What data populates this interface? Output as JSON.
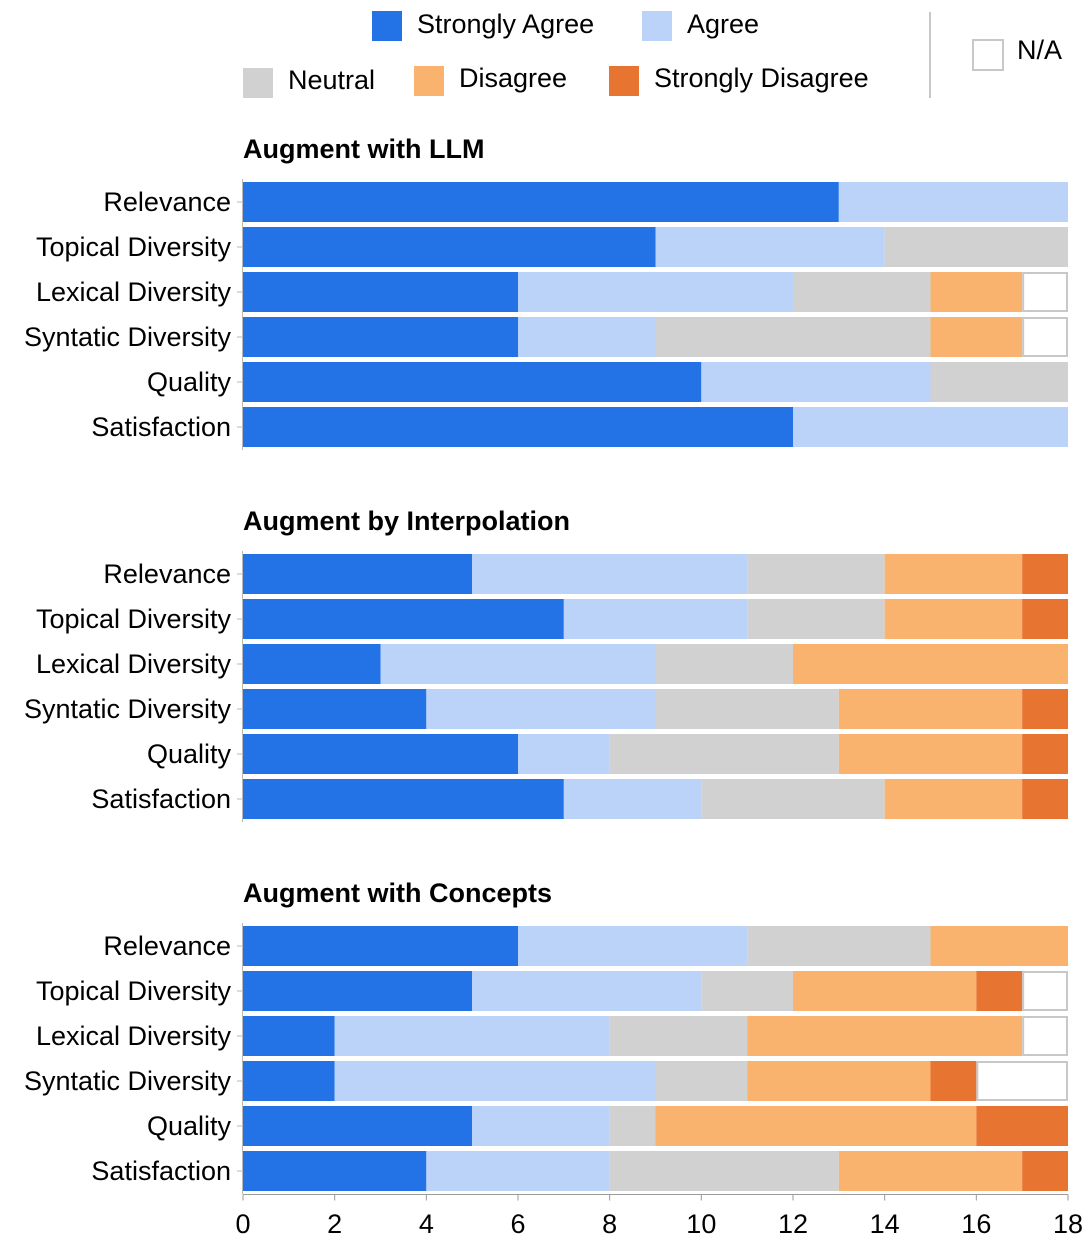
{
  "chart_data": {
    "type": "bar",
    "orientation": "horizontal",
    "stacked": true,
    "xlim": [
      0,
      18
    ],
    "x_ticks": [
      0,
      2,
      4,
      6,
      8,
      10,
      12,
      14,
      16,
      18
    ],
    "legend": [
      {
        "key": "strongly_agree",
        "label": "Strongly Agree",
        "color": "#2373e6"
      },
      {
        "key": "agree",
        "label": "Agree",
        "color": "#bbd3f8"
      },
      {
        "key": "neutral",
        "label": "Neutral",
        "color": "#d1d1d1"
      },
      {
        "key": "disagree",
        "label": "Disagree",
        "color": "#f9b36f"
      },
      {
        "key": "strongly_disagree",
        "label": "Strongly Disagree",
        "color": "#e87432"
      },
      {
        "key": "na",
        "label": "N/A",
        "color": "#ffffff"
      }
    ],
    "categories": [
      "Relevance",
      "Topical Diversity",
      "Lexical Diversity",
      "Syntatic Diversity",
      "Quality",
      "Satisfaction"
    ],
    "groups": [
      {
        "title": "Augment with LLM",
        "rows": [
          {
            "category": "Relevance",
            "values": [
              13,
              5,
              0,
              0,
              0,
              0
            ]
          },
          {
            "category": "Topical Diversity",
            "values": [
              9,
              5,
              4,
              0,
              0,
              0
            ]
          },
          {
            "category": "Lexical Diversity",
            "values": [
              6,
              6,
              3,
              2,
              0,
              1
            ]
          },
          {
            "category": "Syntatic Diversity",
            "values": [
              6,
              3,
              6,
              2,
              0,
              1
            ]
          },
          {
            "category": "Quality",
            "values": [
              10,
              5,
              3,
              0,
              0,
              0
            ]
          },
          {
            "category": "Satisfaction",
            "values": [
              12,
              6,
              0,
              0,
              0,
              0
            ]
          }
        ]
      },
      {
        "title": "Augment by Interpolation",
        "rows": [
          {
            "category": "Relevance",
            "values": [
              5,
              6,
              3,
              3,
              1,
              0
            ]
          },
          {
            "category": "Topical Diversity",
            "values": [
              7,
              4,
              3,
              3,
              1,
              0
            ]
          },
          {
            "category": "Lexical Diversity",
            "values": [
              3,
              6,
              3,
              6,
              0,
              0
            ]
          },
          {
            "category": "Syntatic Diversity",
            "values": [
              4,
              5,
              4,
              4,
              1,
              0
            ]
          },
          {
            "category": "Quality",
            "values": [
              6,
              2,
              5,
              4,
              1,
              0
            ]
          },
          {
            "category": "Satisfaction",
            "values": [
              7,
              3,
              4,
              3,
              1,
              0
            ]
          }
        ]
      },
      {
        "title": "Augment with Concepts",
        "rows": [
          {
            "category": "Relevance",
            "values": [
              6,
              5,
              4,
              3,
              0,
              0
            ]
          },
          {
            "category": "Topical Diversity",
            "values": [
              5,
              5,
              2,
              4,
              1,
              1
            ]
          },
          {
            "category": "Lexical Diversity",
            "values": [
              2,
              6,
              3,
              6,
              0,
              1
            ]
          },
          {
            "category": "Syntatic Diversity",
            "values": [
              2,
              7,
              2,
              4,
              1,
              2
            ]
          },
          {
            "category": "Quality",
            "values": [
              5,
              3,
              1,
              7,
              2,
              0
            ]
          },
          {
            "category": "Satisfaction",
            "values": [
              4,
              4,
              5,
              4,
              1,
              0
            ]
          }
        ]
      }
    ]
  }
}
